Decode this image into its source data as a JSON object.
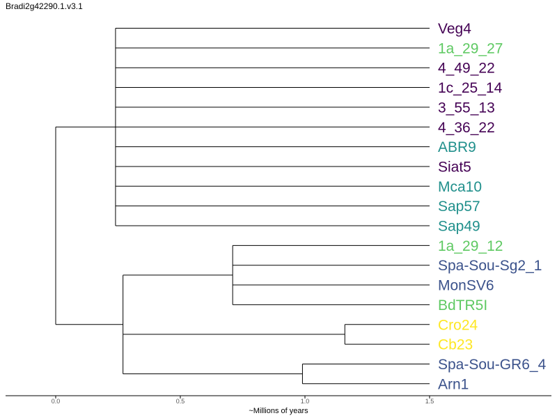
{
  "title": "Bradi2g42290.1.v3.1",
  "axis": {
    "label": "~Millions of years",
    "ticks": [
      "0.0",
      "0.5",
      "1.0",
      "1.5"
    ]
  },
  "colors": {
    "purple": "#440154",
    "teal": "#21908c",
    "green": "#5ec962",
    "blue": "#3b528b",
    "yellow": "#fde725",
    "branch": "#000000"
  },
  "leaves": [
    {
      "name": "Veg4",
      "color": "purple"
    },
    {
      "name": "1a_29_27",
      "color": "green"
    },
    {
      "name": "4_49_22",
      "color": "purple"
    },
    {
      "name": "1c_25_14",
      "color": "purple"
    },
    {
      "name": "3_55_13",
      "color": "purple"
    },
    {
      "name": "4_36_22",
      "color": "purple"
    },
    {
      "name": "ABR9",
      "color": "teal"
    },
    {
      "name": "Siat5",
      "color": "purple"
    },
    {
      "name": "Mca10",
      "color": "teal"
    },
    {
      "name": "Sap57",
      "color": "teal"
    },
    {
      "name": "Sap49",
      "color": "teal"
    },
    {
      "name": "1a_29_12",
      "color": "green"
    },
    {
      "name": "Spa-Sou-Sg2_1",
      "color": "blue"
    },
    {
      "name": "MonSV6",
      "color": "blue"
    },
    {
      "name": "BdTR5I",
      "color": "green"
    },
    {
      "name": "Cro24",
      "color": "yellow"
    },
    {
      "name": "Cb23",
      "color": "yellow"
    },
    {
      "name": "Spa-Sou-GR6_4",
      "color": "blue"
    },
    {
      "name": "Arn1",
      "color": "blue"
    }
  ],
  "tree": {
    "height": 0,
    "children": [
      {
        "height": 0.24,
        "children": [
          0,
          1,
          2,
          3,
          4,
          5,
          6,
          7,
          8,
          9,
          10
        ]
      },
      {
        "height": 0.27,
        "children": [
          {
            "height": 0.71,
            "children": [
              11,
              12,
              13,
              14
            ]
          },
          {
            "height": 1.16,
            "children": [
              15,
              16
            ]
          },
          {
            "height": 0.99,
            "children": [
              17,
              18
            ]
          }
        ]
      }
    ]
  },
  "tip_height": 1.5
}
